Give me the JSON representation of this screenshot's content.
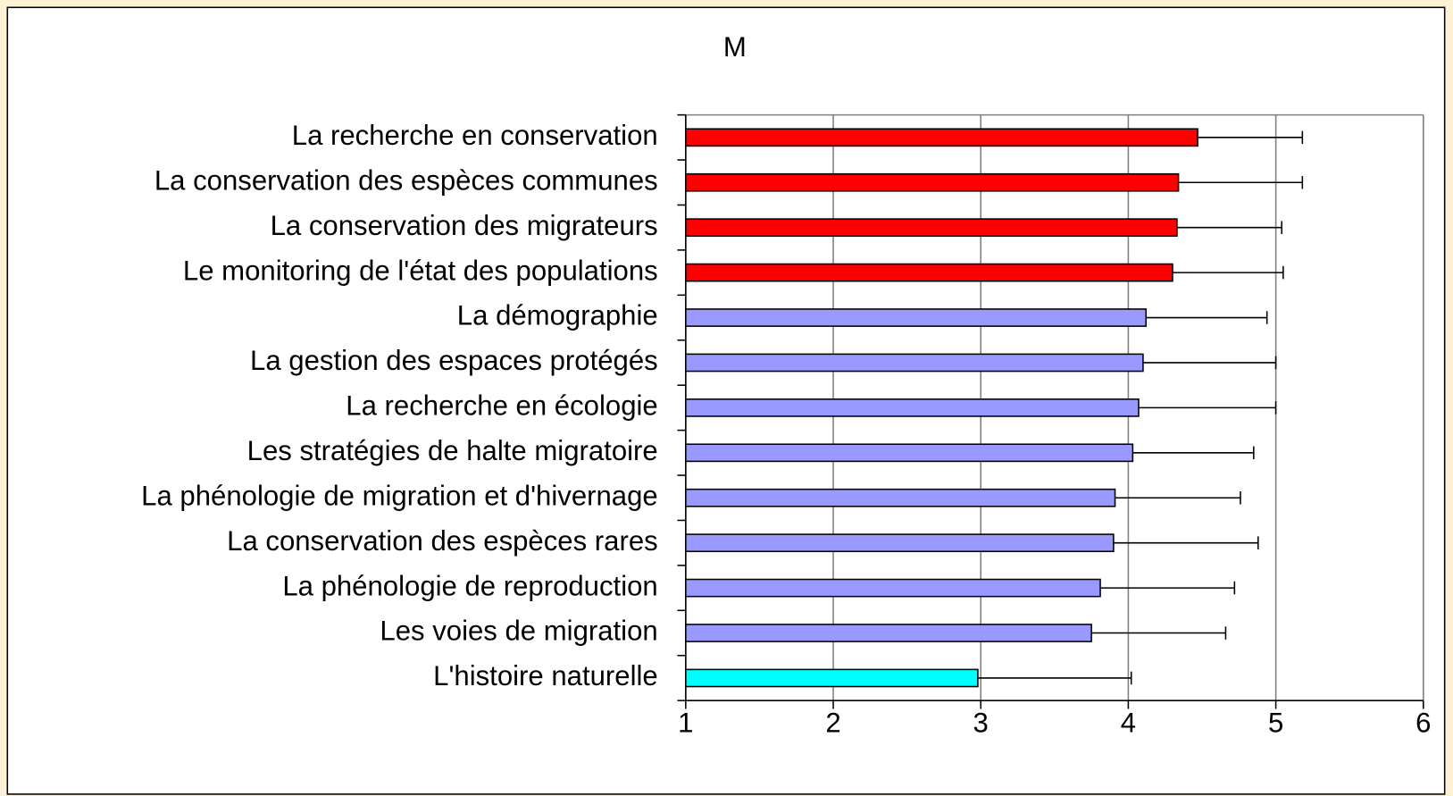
{
  "chart_data": {
    "type": "barh",
    "title": "M",
    "categories": [
      "La recherche en conservation",
      "La conservation des espèces communes",
      "La conservation des migrateurs",
      "Le monitoring de l'état des populations",
      "La démographie",
      "La gestion des espaces protégés",
      "La recherche en écologie",
      "Les stratégies de halte migratoire",
      "La phénologie de migration et d'hivernage",
      "La conservation des espèces rares",
      "La phénologie de reproduction",
      "Les voies de migration",
      "L'histoire naturelle"
    ],
    "values": [
      4.47,
      4.34,
      4.33,
      4.3,
      4.12,
      4.1,
      4.07,
      4.03,
      3.91,
      3.9,
      3.81,
      3.75,
      2.98
    ],
    "errors": [
      0.71,
      0.84,
      0.71,
      0.75,
      0.82,
      0.9,
      0.93,
      0.82,
      0.85,
      0.98,
      0.91,
      0.91,
      1.04
    ],
    "colors": [
      "#ff0000",
      "#ff0000",
      "#ff0000",
      "#ff0000",
      "#9999ff",
      "#9999ff",
      "#9999ff",
      "#9999ff",
      "#9999ff",
      "#9999ff",
      "#9999ff",
      "#9999ff",
      "#00ffff"
    ],
    "xlim": [
      1,
      6
    ],
    "xticks": [
      1,
      2,
      3,
      4,
      5,
      6
    ],
    "grid": true
  }
}
